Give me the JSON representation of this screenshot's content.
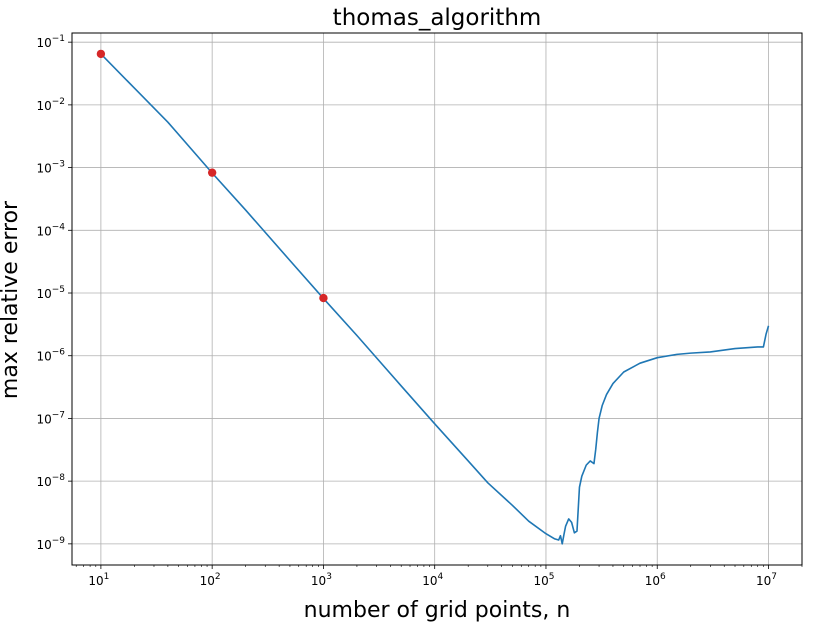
{
  "chart_data": {
    "type": "line",
    "title": "thomas_algorithm",
    "xlabel": "number of grid points, n",
    "ylabel": "max relative error",
    "xscale": "log",
    "yscale": "log",
    "xlim": [
      5.5,
      20000000
    ],
    "ylim": [
      4.6e-10,
      0.14
    ],
    "grid": true,
    "xticks": [
      {
        "base": "10",
        "exp": "1",
        "value": 10
      },
      {
        "base": "10",
        "exp": "2",
        "value": 100
      },
      {
        "base": "10",
        "exp": "3",
        "value": 1000
      },
      {
        "base": "10",
        "exp": "4",
        "value": 10000
      },
      {
        "base": "10",
        "exp": "5",
        "value": 100000
      },
      {
        "base": "10",
        "exp": "6",
        "value": 1000000
      },
      {
        "base": "10",
        "exp": "7",
        "value": 10000000
      }
    ],
    "yticks": [
      {
        "base": "10",
        "exp": "−9",
        "value": 1e-09
      },
      {
        "base": "10",
        "exp": "−8",
        "value": 1e-08
      },
      {
        "base": "10",
        "exp": "−7",
        "value": 1e-07
      },
      {
        "base": "10",
        "exp": "−6",
        "value": 1e-06
      },
      {
        "base": "10",
        "exp": "−5",
        "value": 1e-05
      },
      {
        "base": "10",
        "exp": "−4",
        "value": 0.0001
      },
      {
        "base": "10",
        "exp": "−3",
        "value": 0.001
      },
      {
        "base": "10",
        "exp": "−2",
        "value": 0.01
      },
      {
        "base": "10",
        "exp": "−1",
        "value": 0.1
      }
    ],
    "series": [
      {
        "color": "#1f77b4",
        "x": [
          10,
          20,
          40,
          100,
          200,
          500,
          1000,
          2000,
          5000,
          10000,
          20000,
          30000,
          50000,
          70000,
          100000,
          120000,
          130000,
          135000,
          140000,
          145000,
          150000,
          160000,
          170000,
          180000,
          190000,
          200000,
          210000,
          230000,
          250000,
          270000,
          280000,
          290000,
          300000,
          320000,
          350000,
          400000,
          500000,
          700000,
          1000000,
          1500000,
          2000000,
          3000000,
          5000000,
          8000000,
          9000000,
          9500000,
          10000000
        ],
        "y": [
          0.065,
          0.0185,
          0.0053,
          0.00082,
          0.00021,
          3.3e-05,
          8.2e-06,
          2.1e-06,
          3.3e-07,
          8.2e-08,
          2.1e-08,
          9.4e-09,
          4.1e-09,
          2.3e-09,
          1.45e-09,
          1.2e-09,
          1.15e-09,
          1.35e-09,
          1e-09,
          1.4e-09,
          1.9e-09,
          2.5e-09,
          2.2e-09,
          1.5e-09,
          1.6e-09,
          8e-09,
          1.2e-08,
          1.8e-08,
          2.1e-08,
          1.9e-08,
          3.2e-08,
          6e-08,
          1e-07,
          1.6e-07,
          2.4e-07,
          3.6e-07,
          5.5e-07,
          7.6e-07,
          9.3e-07,
          1.05e-06,
          1.1e-06,
          1.15e-06,
          1.3e-06,
          1.38e-06,
          1.38e-06,
          2.2e-06,
          3e-06
        ]
      }
    ],
    "markers": {
      "color": "#d62728",
      "x": [
        10,
        100,
        1000
      ],
      "y": [
        0.065,
        0.00083,
        8.3e-06
      ]
    }
  }
}
